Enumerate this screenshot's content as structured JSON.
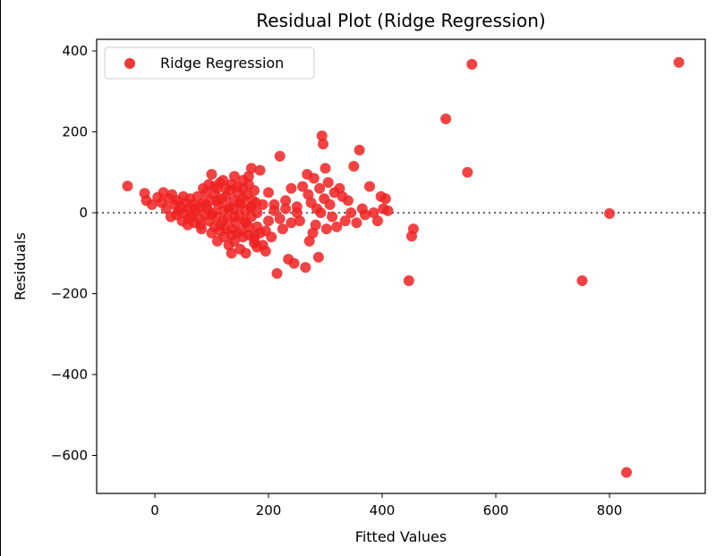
{
  "chart_data": {
    "type": "scatter",
    "title": "Residual Plot (Ridge Regression)",
    "xlabel": "Fitted Values",
    "ylabel": "Residuals",
    "xlim": [
      -100,
      950
    ],
    "ylim": [
      -690,
      420
    ],
    "x_ticks": [
      0,
      200,
      400,
      600,
      800
    ],
    "y_ticks": [
      400,
      200,
      0,
      -200,
      -400,
      -600
    ],
    "x_tick_labels": [
      "0",
      "200",
      "400",
      "600",
      "800"
    ],
    "y_tick_labels": [
      "400",
      "200",
      "0",
      "−200",
      "−400",
      "−600"
    ],
    "reference_line": {
      "y": 0,
      "style": "dotted",
      "color": "#333333"
    },
    "grid": false,
    "legend": {
      "placement": "upper-left",
      "entries": [
        "Ridge Regression"
      ]
    },
    "series": [
      {
        "name": "Ridge Regression",
        "color": "#ee2222",
        "points": [
          [
            -48,
            66
          ],
          [
            -18,
            48
          ],
          [
            -15,
            30
          ],
          [
            -5,
            20
          ],
          [
            5,
            38
          ],
          [
            12,
            25
          ],
          [
            15,
            50
          ],
          [
            20,
            10
          ],
          [
            25,
            35
          ],
          [
            28,
            -10
          ],
          [
            30,
            45
          ],
          [
            35,
            20
          ],
          [
            38,
            -5
          ],
          [
            40,
            30
          ],
          [
            42,
            5
          ],
          [
            45,
            15
          ],
          [
            48,
            -20
          ],
          [
            50,
            40
          ],
          [
            52,
            0
          ],
          [
            55,
            25
          ],
          [
            58,
            -30
          ],
          [
            60,
            10
          ],
          [
            62,
            35
          ],
          [
            65,
            -10
          ],
          [
            68,
            20
          ],
          [
            70,
            -25
          ],
          [
            72,
            5
          ],
          [
            75,
            40
          ],
          [
            78,
            -15
          ],
          [
            80,
            15
          ],
          [
            82,
            -40
          ],
          [
            85,
            25
          ],
          [
            88,
            -5
          ],
          [
            90,
            50
          ],
          [
            92,
            10
          ],
          [
            95,
            -20
          ],
          [
            98,
            30
          ],
          [
            100,
            -50
          ],
          [
            102,
            0
          ],
          [
            105,
            45
          ],
          [
            108,
            -10
          ],
          [
            110,
            60
          ],
          [
            112,
            20
          ],
          [
            115,
            -30
          ],
          [
            118,
            35
          ],
          [
            120,
            5
          ],
          [
            122,
            -60
          ],
          [
            125,
            40
          ],
          [
            128,
            -15
          ],
          [
            130,
            15
          ],
          [
            132,
            55
          ],
          [
            135,
            -40
          ],
          [
            138,
            10
          ],
          [
            140,
            30
          ],
          [
            142,
            -25
          ],
          [
            145,
            50
          ],
          [
            148,
            -5
          ],
          [
            150,
            20
          ],
          [
            152,
            -45
          ],
          [
            155,
            35
          ],
          [
            158,
            -20
          ],
          [
            160,
            5
          ],
          [
            162,
            45
          ],
          [
            165,
            -35
          ],
          [
            168,
            15
          ],
          [
            170,
            -10
          ],
          [
            172,
            30
          ],
          [
            175,
            -55
          ],
          [
            178,
            25
          ],
          [
            180,
            0
          ],
          [
            100,
            95
          ],
          [
            120,
            80
          ],
          [
            110,
            -70
          ],
          [
            130,
            -80
          ],
          [
            140,
            90
          ],
          [
            150,
            -90
          ],
          [
            160,
            -100
          ],
          [
            170,
            110
          ],
          [
            180,
            -85
          ],
          [
            135,
            -100
          ],
          [
            140,
            -70
          ],
          [
            155,
            80
          ],
          [
            165,
            90
          ],
          [
            175,
            -75
          ],
          [
            185,
            105
          ],
          [
            190,
            -80
          ],
          [
            195,
            -95
          ],
          [
            200,
            50
          ],
          [
            205,
            -60
          ],
          [
            210,
            20
          ],
          [
            215,
            -150
          ],
          [
            220,
            140
          ],
          [
            225,
            -40
          ],
          [
            230,
            30
          ],
          [
            235,
            -115
          ],
          [
            240,
            60
          ],
          [
            245,
            -125
          ],
          [
            250,
            15
          ],
          [
            255,
            -20
          ],
          [
            260,
            65
          ],
          [
            265,
            -135
          ],
          [
            268,
            95
          ],
          [
            270,
            45
          ],
          [
            272,
            -70
          ],
          [
            275,
            25
          ],
          [
            278,
            -50
          ],
          [
            280,
            85
          ],
          [
            283,
            -30
          ],
          [
            285,
            10
          ],
          [
            288,
            -110
          ],
          [
            290,
            60
          ],
          [
            292,
            0
          ],
          [
            294,
            190
          ],
          [
            296,
            170
          ],
          [
            298,
            35
          ],
          [
            300,
            110
          ],
          [
            302,
            -40
          ],
          [
            305,
            75
          ],
          [
            308,
            20
          ],
          [
            312,
            -10
          ],
          [
            316,
            50
          ],
          [
            320,
            -35
          ],
          [
            325,
            60
          ],
          [
            330,
            40
          ],
          [
            335,
            -20
          ],
          [
            340,
            30
          ],
          [
            345,
            0
          ],
          [
            350,
            115
          ],
          [
            355,
            -25
          ],
          [
            360,
            155
          ],
          [
            365,
            10
          ],
          [
            370,
            -5
          ],
          [
            378,
            65
          ],
          [
            385,
            0
          ],
          [
            392,
            -20
          ],
          [
            398,
            40
          ],
          [
            402,
            10
          ],
          [
            406,
            35
          ],
          [
            410,
            5
          ],
          [
            447,
            -168
          ],
          [
            452,
            -58
          ],
          [
            455,
            -40
          ],
          [
            512,
            232
          ],
          [
            550,
            100
          ],
          [
            558,
            367
          ],
          [
            752,
            -168
          ],
          [
            800,
            -2
          ],
          [
            830,
            -642
          ],
          [
            922,
            372
          ],
          [
            60,
            -15
          ],
          [
            70,
            10
          ],
          [
            80,
            -30
          ],
          [
            90,
            20
          ],
          [
            100,
            -5
          ],
          [
            110,
            30
          ],
          [
            120,
            -20
          ],
          [
            130,
            10
          ],
          [
            140,
            -10
          ],
          [
            150,
            25
          ],
          [
            160,
            -25
          ],
          [
            170,
            15
          ],
          [
            180,
            -35
          ],
          [
            190,
            20
          ],
          [
            200,
            -20
          ],
          [
            210,
            5
          ],
          [
            220,
            -15
          ],
          [
            230,
            10
          ],
          [
            240,
            -25
          ],
          [
            250,
            0
          ],
          [
            85,
            60
          ],
          [
            95,
            70
          ],
          [
            105,
            65
          ],
          [
            115,
            75
          ],
          [
            125,
            60
          ],
          [
            135,
            70
          ],
          [
            145,
            65
          ],
          [
            155,
            60
          ],
          [
            165,
            70
          ],
          [
            175,
            55
          ],
          [
            105,
            -35
          ],
          [
            115,
            -45
          ],
          [
            125,
            -40
          ],
          [
            135,
            -55
          ],
          [
            145,
            -50
          ],
          [
            155,
            -60
          ],
          [
            165,
            -55
          ],
          [
            175,
            -65
          ],
          [
            185,
            -50
          ],
          [
            195,
            -45
          ]
        ]
      }
    ]
  }
}
